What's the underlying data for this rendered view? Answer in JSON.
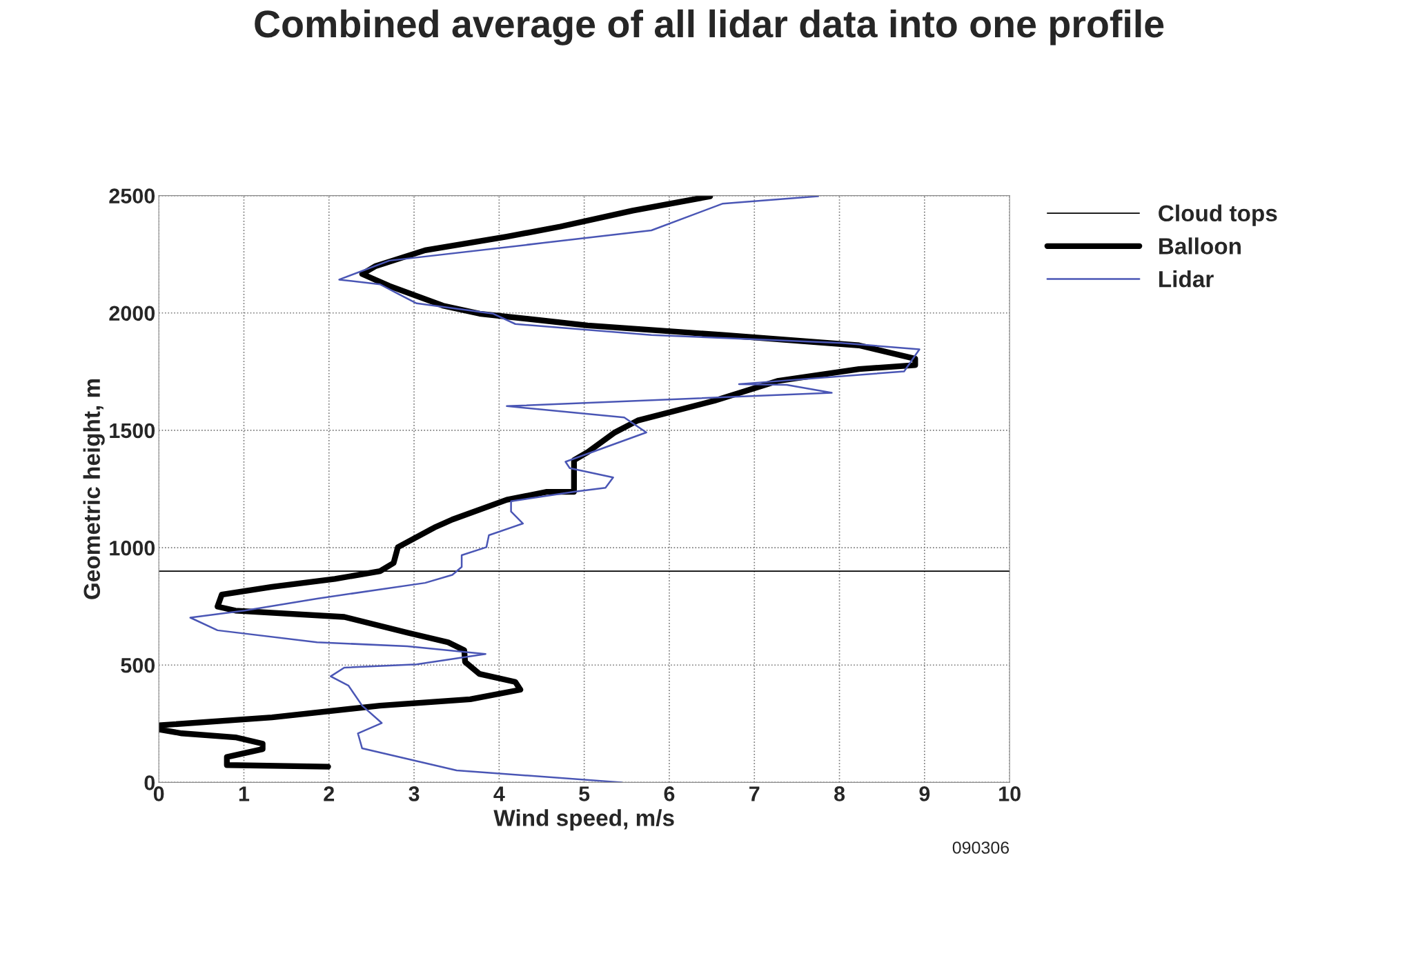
{
  "chart_data": {
    "type": "line",
    "title": "Combined average of all lidar data into one profile",
    "xlabel": "Wind speed, m/s",
    "ylabel": "Geometric height, m",
    "xlim": [
      0,
      10
    ],
    "xticks": [
      0,
      1,
      2,
      3,
      4,
      5,
      6,
      7,
      8,
      9,
      10
    ],
    "ylim": [
      0,
      2500
    ],
    "yticks": [
      0,
      500,
      1000,
      1500,
      2000,
      2500
    ],
    "grid": true,
    "legend": "top right",
    "marker": "none",
    "line_style": "solid",
    "annotations": [
      "090306"
    ],
    "series": [
      {
        "name": "Cloud tops",
        "color": "#000000",
        "x": [
          0,
          10
        ],
        "values": [
          900,
          900
        ]
      },
      {
        "name": "Balloon",
        "color": "#000000",
        "x": [
          1.99,
          0.8,
          0.8,
          1.22,
          1.22,
          0.9,
          0.27,
          0,
          0,
          1.33,
          2.6,
          3.66,
          4.25,
          4.19,
          3.77,
          3.6,
          3.59,
          3.4,
          2.92,
          2.18,
          0.9,
          0.69,
          0.74,
          1.33,
          2.07,
          2.6,
          2.76,
          2.81,
          3.24,
          3.45,
          4.09,
          4.56,
          4.88,
          4.88,
          5.04,
          5.36,
          5.63,
          6.53,
          7.27,
          8.23,
          8.89,
          8.89,
          8.23,
          6.63,
          5.04,
          3.77,
          3.34,
          2.71,
          2.39,
          2.55,
          3.13,
          4.09,
          4.72,
          5.57,
          6.48
        ],
        "values": [
          67,
          74,
          108,
          142,
          165,
          192,
          209,
          226,
          243,
          277,
          327,
          354,
          395,
          428,
          462,
          513,
          563,
          597,
          638,
          705,
          732,
          749,
          800,
          833,
          867,
          900,
          935,
          1002,
          1086,
          1120,
          1204,
          1238,
          1238,
          1373,
          1407,
          1491,
          1542,
          1626,
          1710,
          1761,
          1778,
          1805,
          1862,
          1906,
          1947,
          1997,
          2031,
          2115,
          2166,
          2200,
          2267,
          2325,
          2368,
          2436,
          2497
        ]
      },
      {
        "name": "Lidar",
        "color": "#4a56b5",
        "x": [
          5.44,
          3.5,
          2.39,
          2.34,
          2.62,
          2.39,
          2.23,
          2.02,
          2.18,
          3.03,
          3.84,
          2.92,
          1.86,
          0.69,
          0.37,
          1.01,
          1.86,
          3.13,
          3.45,
          3.56,
          3.56,
          3.85,
          3.88,
          4.28,
          4.14,
          4.14,
          4.88,
          5.25,
          5.34,
          4.83,
          4.78,
          5.73,
          5.47,
          4.09,
          7.91,
          7.38,
          6.82,
          8.76,
          8.94,
          8.02,
          5.79,
          4.19,
          3.93,
          3.03,
          2.81,
          2.6,
          2.12,
          2.71,
          4.51,
          5.79,
          6.63,
          7.75
        ],
        "values": [
          0,
          51,
          145,
          209,
          253,
          327,
          412,
          452,
          489,
          503,
          547,
          580,
          597,
          648,
          702,
          732,
          783,
          850,
          884,
          918,
          968,
          1002,
          1053,
          1103,
          1154,
          1198,
          1238,
          1255,
          1299,
          1339,
          1366,
          1491,
          1555,
          1603,
          1660,
          1694,
          1697,
          1751,
          1845,
          1872,
          1906,
          1953,
          1997,
          2041,
          2082,
          2122,
          2142,
          2223,
          2298,
          2352,
          2466,
          2497
        ]
      }
    ]
  }
}
